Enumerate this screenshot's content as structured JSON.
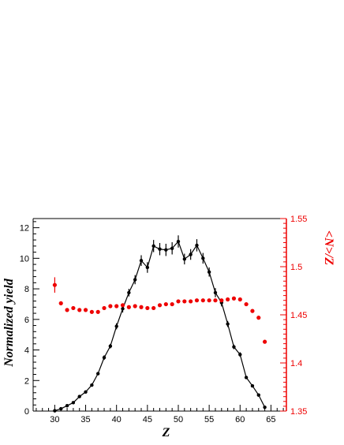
{
  "chart_data": {
    "type": "scatter",
    "xlabel": "Z",
    "ylabel": "Normalized yield",
    "y2label": "<N>/Z",
    "xlim": [
      26.5,
      67.5
    ],
    "ylim": [
      0,
      12.6
    ],
    "y2lim": [
      1.35,
      1.55
    ],
    "xticks": [
      30,
      35,
      40,
      45,
      50,
      55,
      60,
      65
    ],
    "yticks": [
      0,
      2,
      4,
      6,
      8,
      10,
      12
    ],
    "y2ticks": [
      1.35,
      1.4,
      1.45,
      1.5,
      1.55
    ],
    "x_tick_labels": [
      "30",
      "35",
      "40",
      "45",
      "50",
      "55",
      "60",
      "65"
    ],
    "y_tick_labels": [
      "0",
      "2",
      "4",
      "6",
      "8",
      "10",
      "12"
    ],
    "y2_tick_labels": [
      "1.35",
      "1.4",
      "1.45",
      "1.5",
      "1.55"
    ],
    "grid": false,
    "series": [
      {
        "axis": "left",
        "color": "#000000",
        "style": "line-markers",
        "points": [
          {
            "x": 30,
            "y": 0.02,
            "err": 0
          },
          {
            "x": 31,
            "y": 0.15,
            "err": 0
          },
          {
            "x": 32,
            "y": 0.35,
            "err": 0
          },
          {
            "x": 33,
            "y": 0.55,
            "err": 0
          },
          {
            "x": 34,
            "y": 0.95,
            "err": 0
          },
          {
            "x": 35,
            "y": 1.25,
            "err": 0
          },
          {
            "x": 36,
            "y": 1.7,
            "err": 0
          },
          {
            "x": 37,
            "y": 2.45,
            "err": 0.1
          },
          {
            "x": 38,
            "y": 3.5,
            "err": 0.15
          },
          {
            "x": 39,
            "y": 4.25,
            "err": 0.15
          },
          {
            "x": 40,
            "y": 5.55,
            "err": 0.2
          },
          {
            "x": 41,
            "y": 6.7,
            "err": 0.25
          },
          {
            "x": 42,
            "y": 7.75,
            "err": 0.25
          },
          {
            "x": 43,
            "y": 8.6,
            "err": 0.3
          },
          {
            "x": 44,
            "y": 9.85,
            "err": 0.35
          },
          {
            "x": 45,
            "y": 9.4,
            "err": 0.35
          },
          {
            "x": 46,
            "y": 10.8,
            "err": 0.4
          },
          {
            "x": 47,
            "y": 10.6,
            "err": 0.4
          },
          {
            "x": 48,
            "y": 10.55,
            "err": 0.4
          },
          {
            "x": 49,
            "y": 10.65,
            "err": 0.4
          },
          {
            "x": 50,
            "y": 11.1,
            "err": 0.4
          },
          {
            "x": 51,
            "y": 9.95,
            "err": 0.35
          },
          {
            "x": 52,
            "y": 10.25,
            "err": 0.35
          },
          {
            "x": 53,
            "y": 10.85,
            "err": 0.4
          },
          {
            "x": 54,
            "y": 10.0,
            "err": 0.35
          },
          {
            "x": 55,
            "y": 9.1,
            "err": 0.3
          },
          {
            "x": 56,
            "y": 7.75,
            "err": 0.3
          },
          {
            "x": 57,
            "y": 7.1,
            "err": 0.25
          },
          {
            "x": 58,
            "y": 5.7,
            "err": 0.2
          },
          {
            "x": 59,
            "y": 4.2,
            "err": 0.15
          },
          {
            "x": 60,
            "y": 3.7,
            "err": 0.15
          },
          {
            "x": 61,
            "y": 2.2,
            "err": 0.1
          },
          {
            "x": 62,
            "y": 1.65,
            "err": 0
          },
          {
            "x": 63,
            "y": 1.05,
            "err": 0
          },
          {
            "x": 64,
            "y": 0.25,
            "err": 0
          }
        ]
      },
      {
        "axis": "right",
        "color": "#ee0000",
        "style": "markers",
        "points": [
          {
            "x": 30,
            "y": 1.481,
            "err": 0.008
          },
          {
            "x": 31,
            "y": 1.462,
            "err": 0.002
          },
          {
            "x": 32,
            "y": 1.455,
            "err": 0
          },
          {
            "x": 33,
            "y": 1.457,
            "err": 0
          },
          {
            "x": 34,
            "y": 1.455,
            "err": 0
          },
          {
            "x": 35,
            "y": 1.455,
            "err": 0
          },
          {
            "x": 36,
            "y": 1.453,
            "err": 0
          },
          {
            "x": 37,
            "y": 1.453,
            "err": 0
          },
          {
            "x": 38,
            "y": 1.457,
            "err": 0
          },
          {
            "x": 39,
            "y": 1.459,
            "err": 0
          },
          {
            "x": 40,
            "y": 1.459,
            "err": 0
          },
          {
            "x": 41,
            "y": 1.46,
            "err": 0
          },
          {
            "x": 42,
            "y": 1.458,
            "err": 0
          },
          {
            "x": 43,
            "y": 1.459,
            "err": 0
          },
          {
            "x": 44,
            "y": 1.458,
            "err": 0
          },
          {
            "x": 45,
            "y": 1.457,
            "err": 0
          },
          {
            "x": 46,
            "y": 1.457,
            "err": 0
          },
          {
            "x": 47,
            "y": 1.46,
            "err": 0
          },
          {
            "x": 48,
            "y": 1.461,
            "err": 0
          },
          {
            "x": 49,
            "y": 1.461,
            "err": 0
          },
          {
            "x": 50,
            "y": 1.464,
            "err": 0
          },
          {
            "x": 51,
            "y": 1.464,
            "err": 0
          },
          {
            "x": 52,
            "y": 1.464,
            "err": 0
          },
          {
            "x": 53,
            "y": 1.465,
            "err": 0
          },
          {
            "x": 54,
            "y": 1.465,
            "err": 0
          },
          {
            "x": 55,
            "y": 1.465,
            "err": 0
          },
          {
            "x": 56,
            "y": 1.465,
            "err": 0
          },
          {
            "x": 57,
            "y": 1.465,
            "err": 0
          },
          {
            "x": 58,
            "y": 1.466,
            "err": 0
          },
          {
            "x": 59,
            "y": 1.467,
            "err": 0
          },
          {
            "x": 60,
            "y": 1.466,
            "err": 0
          },
          {
            "x": 61,
            "y": 1.461,
            "err": 0
          },
          {
            "x": 62,
            "y": 1.454,
            "err": 0
          },
          {
            "x": 63,
            "y": 1.447,
            "err": 0
          },
          {
            "x": 64,
            "y": 1.422,
            "err": 0
          }
        ]
      }
    ]
  }
}
